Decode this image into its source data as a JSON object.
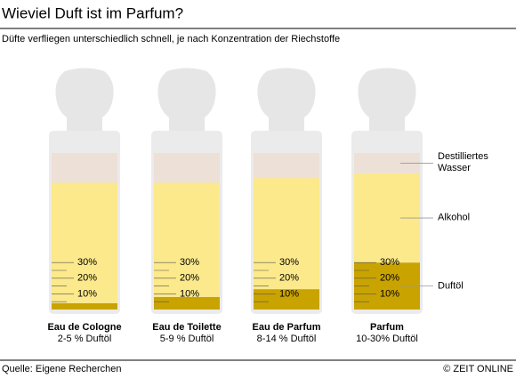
{
  "chart_data": {
    "type": "bottle-stack",
    "title": "Wieviel Duft ist im Parfum?",
    "subtitle": "Düfte verfliegen unterschiedlich schnell, je nach Konzentration der Riechstoffe",
    "categories": [
      "Eau de Cologne",
      "Eau de Toilette",
      "Eau de Parfum",
      "Parfum"
    ],
    "category_notes": [
      "2-5 % Duftöl",
      "5-9 % Duftöl",
      "8-14 % Duftöl",
      "10-30% Duftöl"
    ],
    "series": [
      {
        "name": "Duftöl",
        "color": "#c9a300",
        "values": [
          4,
          8,
          13,
          30
        ]
      },
      {
        "name": "Alkohol",
        "color": "#fbe98b",
        "values": [
          77,
          73,
          71,
          57
        ]
      },
      {
        "name": "Destilliertes Wasser",
        "color": "#ede0d7",
        "values": [
          19,
          19,
          16,
          13
        ]
      }
    ],
    "ylim": [
      0,
      100
    ],
    "yticks": [
      {
        "value": 10,
        "label": "10%"
      },
      {
        "value": 20,
        "label": "20%"
      },
      {
        "value": 30,
        "label": "30%"
      }
    ],
    "minor_yticks": [
      5,
      15,
      25
    ],
    "source": "Quelle: Eigene Recherchen",
    "credit": "© ZEIT ONLINE"
  }
}
